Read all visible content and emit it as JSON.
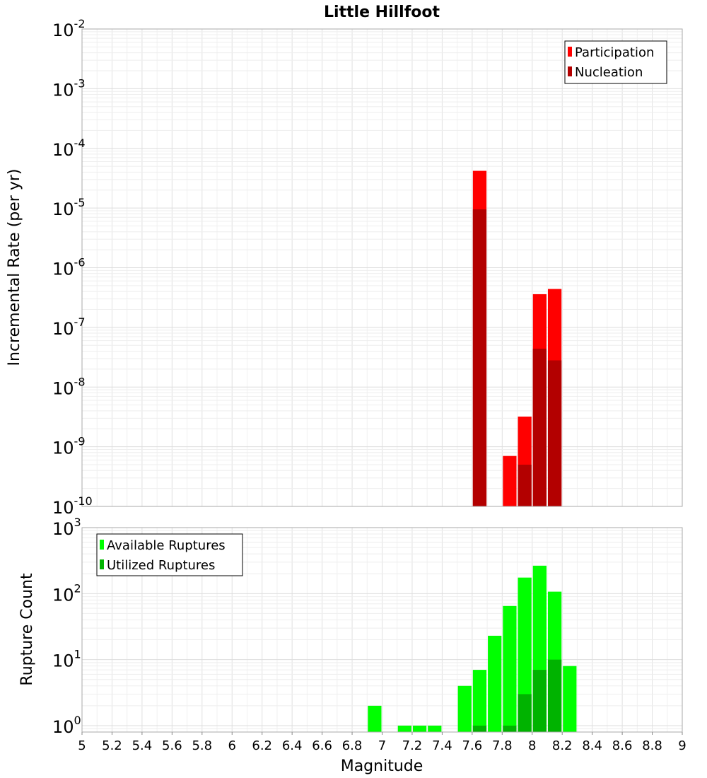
{
  "chart_data": [
    {
      "type": "bar",
      "title": "Little Hillfoot",
      "ylabel": "Incremental Rate (per yr)",
      "yscale": "log",
      "ylim": [
        1e-10,
        0.01
      ],
      "xlim": [
        5,
        9
      ],
      "ytick_bases": [
        "10",
        "10",
        "10",
        "10",
        "10",
        "10",
        "10",
        "10",
        "10"
      ],
      "ytick_exponents": [
        "-10",
        "-9",
        "-8",
        "-7",
        "-6",
        "-5",
        "-4",
        "-3",
        "-2"
      ],
      "legend": "top-right",
      "grid": true,
      "series": [
        {
          "name": "Participation",
          "color": "#ff0000",
          "points": [
            {
              "x": 7.65,
              "y": 4.2e-05
            },
            {
              "x": 7.85,
              "y": 7e-10
            },
            {
              "x": 7.95,
              "y": 3.2e-09
            },
            {
              "x": 8.05,
              "y": 3.6e-07
            },
            {
              "x": 8.15,
              "y": 4.4e-07
            }
          ]
        },
        {
          "name": "Nucleation",
          "color": "#b30000",
          "points": [
            {
              "x": 7.65,
              "y": 9.5e-06
            },
            {
              "x": 7.95,
              "y": 5e-10
            },
            {
              "x": 8.05,
              "y": 4.4e-08
            },
            {
              "x": 8.15,
              "y": 2.8e-08
            }
          ]
        }
      ]
    },
    {
      "type": "bar",
      "ylabel": "Rupture Count",
      "xlabel": "Magnitude",
      "yscale": "log",
      "ylim": [
        0.8,
        1000
      ],
      "xlim": [
        5,
        9
      ],
      "ytick_bases": [
        "10",
        "10",
        "10",
        "10"
      ],
      "ytick_exponents": [
        "0",
        "1",
        "2",
        "3"
      ],
      "xticks": [
        "5",
        "5.2",
        "5.4",
        "5.6",
        "5.8",
        "6",
        "6.2",
        "6.4",
        "6.6",
        "6.8",
        "7",
        "7.2",
        "7.4",
        "7.6",
        "7.8",
        "8",
        "8.2",
        "8.4",
        "8.6",
        "8.8",
        "9"
      ],
      "legend": "top-left",
      "grid": true,
      "series": [
        {
          "name": "Available Ruptures",
          "color": "#00ff00",
          "points": [
            {
              "x": 6.95,
              "y": 2
            },
            {
              "x": 7.15,
              "y": 1
            },
            {
              "x": 7.25,
              "y": 1
            },
            {
              "x": 7.35,
              "y": 1
            },
            {
              "x": 7.55,
              "y": 4
            },
            {
              "x": 7.65,
              "y": 7
            },
            {
              "x": 7.75,
              "y": 23
            },
            {
              "x": 7.85,
              "y": 65
            },
            {
              "x": 7.95,
              "y": 175
            },
            {
              "x": 8.05,
              "y": 265
            },
            {
              "x": 8.15,
              "y": 107
            },
            {
              "x": 8.25,
              "y": 8
            }
          ]
        },
        {
          "name": "Utilized Ruptures",
          "color": "#00b300",
          "points": [
            {
              "x": 7.65,
              "y": 1
            },
            {
              "x": 7.85,
              "y": 1
            },
            {
              "x": 7.95,
              "y": 3
            },
            {
              "x": 8.05,
              "y": 7
            },
            {
              "x": 8.15,
              "y": 10
            }
          ]
        }
      ]
    }
  ]
}
